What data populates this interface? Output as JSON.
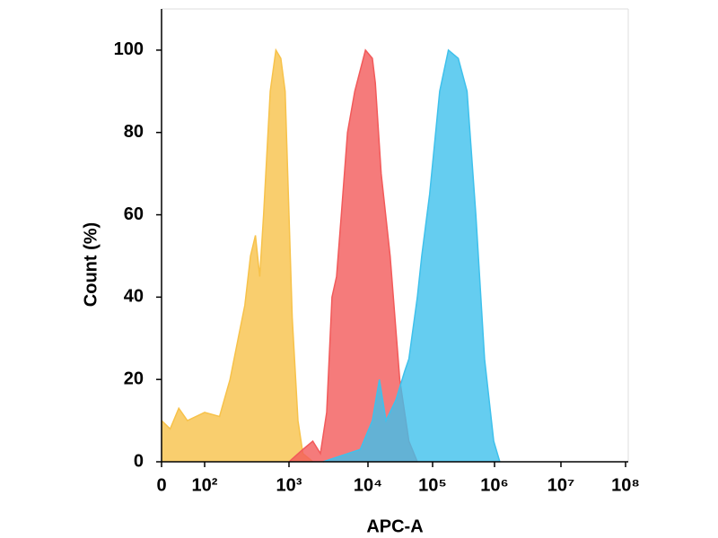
{
  "chart_data": {
    "type": "area",
    "xlabel": "APC-A",
    "ylabel": "Count  (%)",
    "xscale": "biexponential",
    "xlim": [
      0,
      100000000
    ],
    "xticks": [
      0,
      {
        "value": 100,
        "label": "10²"
      },
      {
        "value": 1000,
        "label": "10³"
      },
      {
        "value": 10000,
        "label": "10⁴"
      },
      {
        "value": 100000,
        "label": "10⁵"
      },
      {
        "value": 1000000,
        "label": "10⁶"
      },
      {
        "value": 10000000,
        "label": "10⁷"
      },
      {
        "value": 100000000,
        "label": "10⁸"
      }
    ],
    "ylim": [
      0,
      110
    ],
    "yticks": [
      0,
      20,
      40,
      60,
      80,
      100
    ],
    "series": [
      {
        "color": "#f7c24a",
        "x": [
          0,
          20,
          40,
          60,
          100,
          150,
          200,
          250,
          300,
          350,
          400,
          450,
          500,
          600,
          700,
          800,
          900,
          1000,
          1100,
          1300,
          1500,
          2000
        ],
        "values": [
          10,
          8,
          13,
          10,
          12,
          11,
          20,
          30,
          38,
          50,
          55,
          45,
          60,
          90,
          100,
          98,
          90,
          60,
          35,
          10,
          2,
          0
        ]
      },
      {
        "color": "#f25a5a",
        "x": [
          1000,
          1500,
          2000,
          2500,
          3000,
          3500,
          4000,
          4600,
          5500,
          6800,
          9300,
          11700,
          13000,
          16000,
          22000,
          31000,
          43000,
          58000
        ],
        "values": [
          0,
          3,
          5,
          2,
          12,
          40,
          45,
          60,
          80,
          90,
          100,
          98,
          92,
          70,
          50,
          20,
          5,
          0
        ]
      },
      {
        "color": "#3fc1ec",
        "x": [
          2700,
          8000,
          11700,
          15000,
          19000,
          27000,
          37000,
          43000,
          58000,
          68000,
          90000,
          130000,
          180000,
          260000,
          360000,
          500000,
          690000,
          970000,
          1200000
        ],
        "values": [
          0,
          3,
          10,
          20,
          10,
          15,
          22,
          25,
          40,
          50,
          65,
          90,
          100,
          98,
          90,
          60,
          25,
          5,
          0
        ]
      }
    ]
  }
}
